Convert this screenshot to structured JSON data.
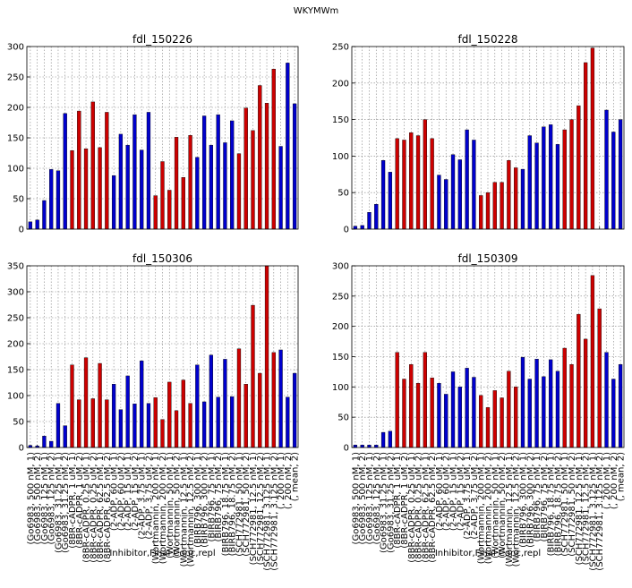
{
  "figure": {
    "suptitle": "WKYMWm"
  },
  "colors": {
    "blue": "#0000cc",
    "red": "#cc0000",
    "grid": "#808080",
    "axis": "#000000"
  },
  "categories": [
    "(Go6983, 500 nM, 1)",
    "(Go6983, 500 nM, 2)",
    "(Go6983, 125 nM, 1)",
    "(Go6983, 125 nM, 2)",
    "(Go6983, 31.25 nM, 1)",
    "(Go6983, 31.25 nM, 2)",
    "(8BR-cADPR, 1 uM, 1)",
    "(8BR-cADPR, 1 uM, 2)",
    "(8BR-cADPR, 0.25 uM, 1)",
    "(8BR-cADPR, 0.25 uM, 2)",
    "(8BR-cADPR, 62.5 nM, 1)",
    "(8BR-cADPR, 62.5 nM, 2)",
    "(2-ADP, 60 uM, 1)",
    "(2-ADP, 60 uM, 2)",
    "(2-ADP, 15 uM, 1)",
    "(2-ADP, 15 uM, 2)",
    "(2-ADP, 3.75 uM, 1)",
    "(2-ADP, 3.75 uM, 2)",
    "(Wortmannin, 200 nM, 1)",
    "(Wortmannin, 200 nM, 2)",
    "(Wortmannin, 50 nM, 1)",
    "(Wortmannin, 50 nM, 2)",
    "(Wortmannin, 12.5 nM, 1)",
    "(Wortmannin, 12.5 nM, 2)",
    "(BIRB796, 300 nM, 1)",
    "(BIRB796, 300 nM, 2)",
    "(BIRB796, 75 nM, 1)",
    "(BIRB796, 75 nM, 2)",
    "(BIRB796, 18.75 nM, 1)",
    "(BIRB796, 18.75 nM, 2)",
    "(SCH772981, 50 nM, 1)",
    "(SCH772981, 50 nM, 2)",
    "(SCH772981, 12.5 nM, 1)",
    "(SCH772981, 12.5 nM, 2)",
    "(SCH772981, 3.125 nM, 1)",
    "(SCH772981, 3.125 nM, 2)",
    "(, 200 nM, 1)",
    "(, 200 nM, 2)",
    "(, mean, 2)"
  ],
  "chart_data": [
    {
      "type": "bar",
      "title": "fdl_150226",
      "xlabel": "",
      "ylim": [
        0,
        300
      ],
      "yticks": [
        0,
        50,
        100,
        150,
        200,
        250,
        300
      ],
      "grid": true,
      "values": [
        12,
        15,
        47,
        98,
        96,
        190,
        129,
        194,
        132,
        209,
        134,
        192,
        88,
        156,
        138,
        188,
        130,
        192,
        55,
        111,
        64,
        151,
        85,
        154,
        118,
        186,
        138,
        188,
        142,
        178,
        124,
        199,
        162,
        236,
        207,
        263,
        136,
        273,
        206
      ]
    },
    {
      "type": "bar",
      "title": "fdl_150228",
      "xlabel": "",
      "ylim": [
        0,
        250
      ],
      "yticks": [
        0,
        50,
        100,
        150,
        200,
        250
      ],
      "grid": true,
      "values": [
        4,
        5,
        23,
        34,
        94,
        78,
        124,
        122,
        132,
        128,
        150,
        124,
        74,
        68,
        102,
        95,
        136,
        122,
        46,
        50,
        64,
        64,
        94,
        84,
        82,
        128,
        118,
        140,
        143,
        116,
        136,
        150,
        169,
        228,
        248,
        0,
        163,
        133,
        150
      ]
    },
    {
      "type": "bar",
      "title": "fdl_150306",
      "xlabel": "Inhibitor,Final Conc,repl",
      "ylim": [
        0,
        350
      ],
      "yticks": [
        0,
        50,
        100,
        150,
        200,
        250,
        300,
        350
      ],
      "grid": true,
      "values": [
        4,
        3,
        22,
        12,
        85,
        42,
        159,
        92,
        173,
        94,
        162,
        92,
        122,
        73,
        138,
        84,
        167,
        85,
        96,
        54,
        126,
        71,
        130,
        85,
        159,
        88,
        178,
        97,
        170,
        98,
        190,
        122,
        274,
        143,
        353,
        183,
        188,
        97,
        143
      ]
    },
    {
      "type": "bar",
      "title": "fdl_150309",
      "xlabel": "Inhibitor,Final Conc,repl",
      "ylim": [
        0,
        300
      ],
      "yticks": [
        0,
        50,
        100,
        150,
        200,
        250,
        300
      ],
      "grid": true,
      "values": [
        4,
        4,
        4,
        4,
        25,
        27,
        157,
        113,
        137,
        106,
        157,
        115,
        106,
        88,
        125,
        100,
        131,
        116,
        86,
        66,
        94,
        82,
        126,
        100,
        149,
        113,
        146,
        117,
        145,
        126,
        164,
        137,
        220,
        179,
        284,
        229,
        157,
        113,
        137
      ]
    }
  ],
  "bar_colors": [
    "blue",
    "blue",
    "blue",
    "blue",
    "blue",
    "blue",
    "red",
    "red",
    "red",
    "red",
    "red",
    "red",
    "blue",
    "blue",
    "blue",
    "blue",
    "blue",
    "blue",
    "red",
    "red",
    "red",
    "red",
    "red",
    "red",
    "blue",
    "blue",
    "blue",
    "blue",
    "blue",
    "blue",
    "red",
    "red",
    "red",
    "red",
    "red",
    "red",
    "blue",
    "blue",
    "blue"
  ]
}
